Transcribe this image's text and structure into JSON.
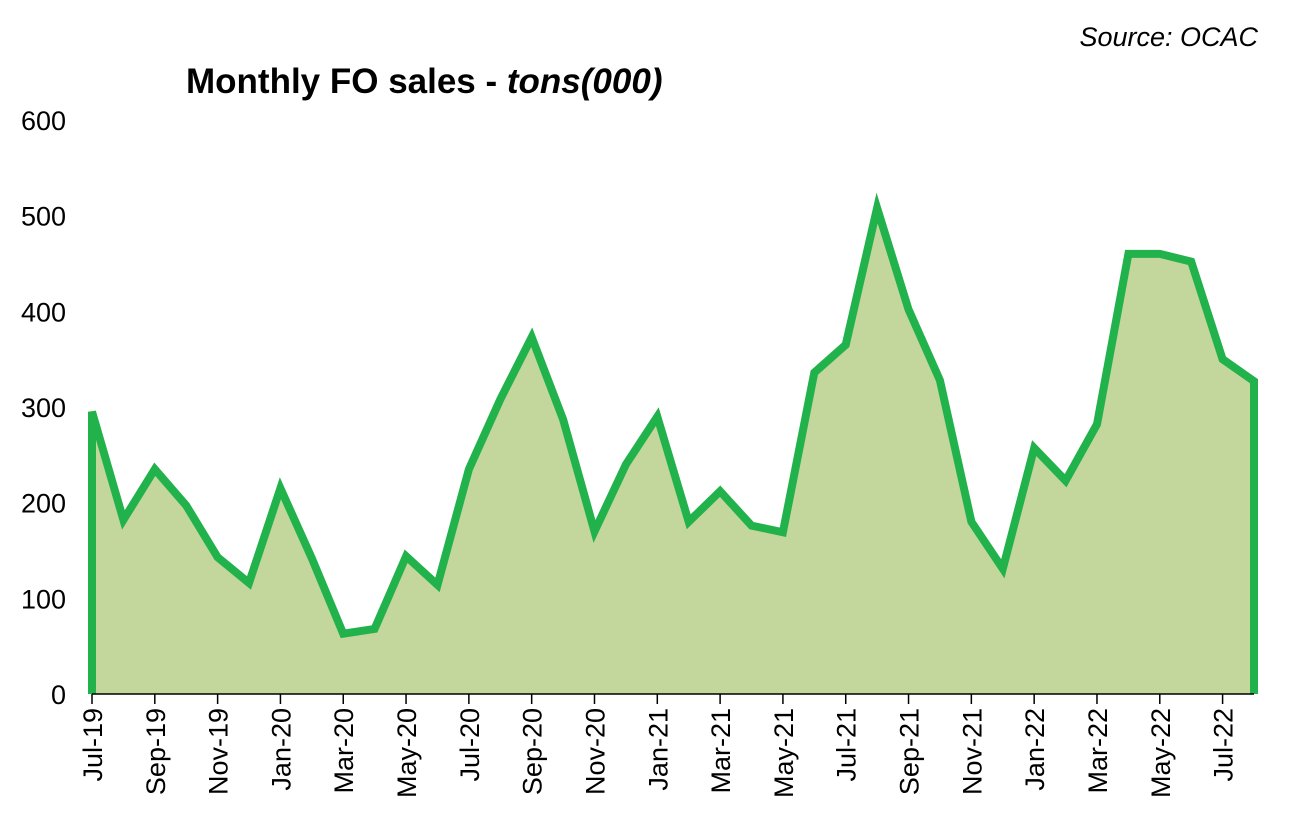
{
  "source": "Source: OCAC",
  "chart_data": {
    "type": "area",
    "title_main": "Monthly FO sales - ",
    "title_unit": "tons(000)",
    "ylim": [
      0,
      600
    ],
    "yticks": [
      0,
      100,
      200,
      300,
      400,
      500,
      600
    ],
    "grid": false,
    "legend": "none",
    "colors": {
      "line": "#22b24c",
      "fill": "#c3d69b"
    },
    "x": [
      "Jul-19",
      "Aug-19",
      "Sep-19",
      "Oct-19",
      "Nov-19",
      "Dec-19",
      "Jan-20",
      "Feb-20",
      "Mar-20",
      "Apr-20",
      "May-20",
      "Jun-20",
      "Jul-20",
      "Aug-20",
      "Sep-20",
      "Oct-20",
      "Nov-20",
      "Dec-20",
      "Jan-21",
      "Feb-21",
      "Mar-21",
      "Apr-21",
      "May-21",
      "Jun-21",
      "Jul-21",
      "Aug-21",
      "Sep-21",
      "Oct-21",
      "Nov-21",
      "Dec-21",
      "Jan-22",
      "Feb-22",
      "Mar-22",
      "Apr-22",
      "May-22",
      "Jun-22",
      "Jul-22",
      "Aug-22"
    ],
    "xticks": [
      "Jul-19",
      "Sep-19",
      "Nov-19",
      "Jan-20",
      "Mar-20",
      "May-20",
      "Jul-20",
      "Sep-20",
      "Nov-20",
      "Jan-21",
      "Mar-21",
      "May-21",
      "Jul-21",
      "Sep-21",
      "Nov-21",
      "Jan-22",
      "Mar-22",
      "May-22",
      "Jul-22"
    ],
    "values": [
      295,
      182,
      235,
      197,
      143,
      116,
      215,
      142,
      63,
      68,
      144,
      114,
      235,
      308,
      373,
      287,
      170,
      240,
      290,
      180,
      212,
      176,
      169,
      336,
      365,
      508,
      402,
      328,
      180,
      131,
      257,
      223,
      282,
      460,
      460,
      452,
      350,
      327
    ]
  }
}
